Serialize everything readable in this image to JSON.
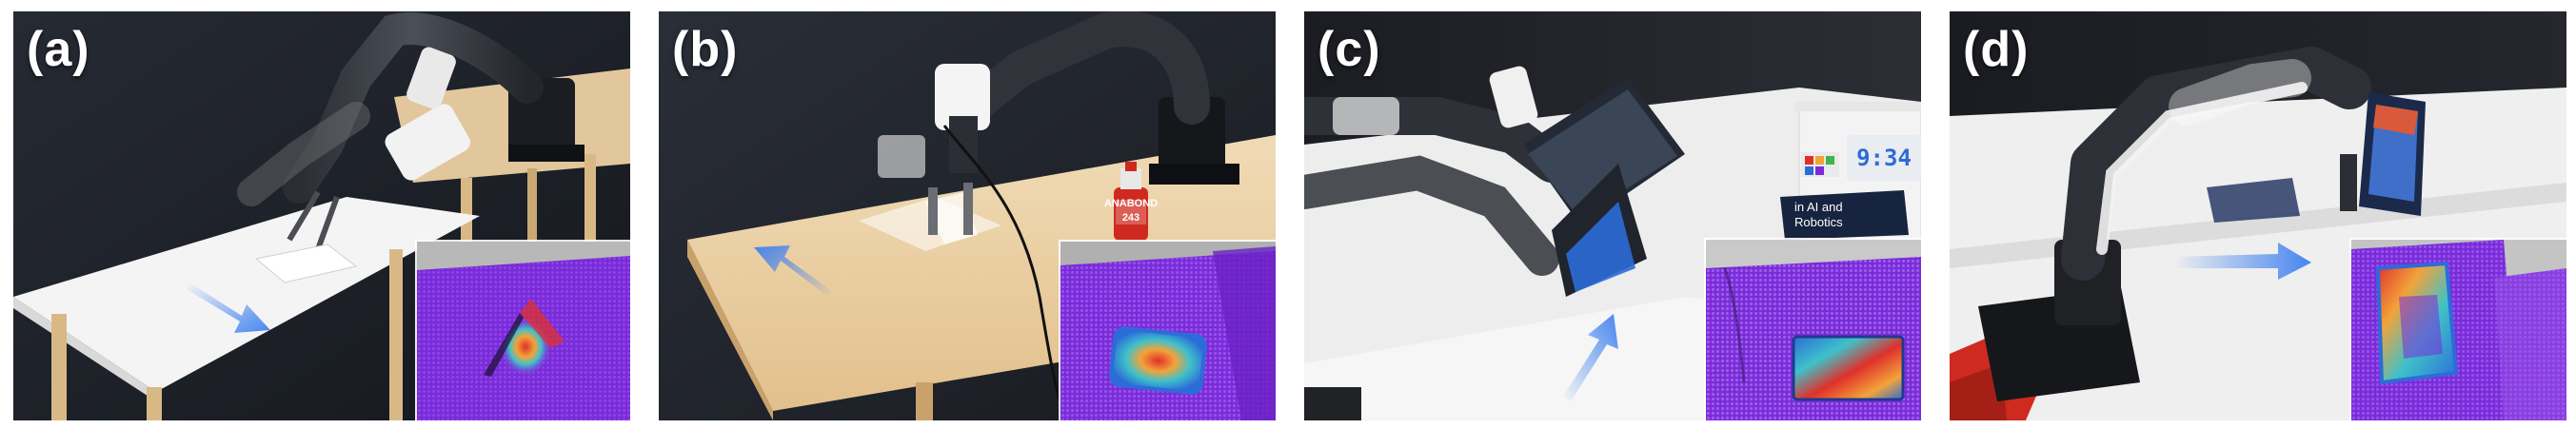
{
  "panels": [
    {
      "label": "(a)",
      "arrow_direction": "down-right"
    },
    {
      "label": "(b)",
      "arrow_direction": "up-left"
    },
    {
      "label": "(c)",
      "arrow_direction": "up-right"
    },
    {
      "label": "(d)",
      "arrow_direction": "right"
    }
  ],
  "props": {
    "bottle_brand": "ANABOND",
    "bottle_number": "243",
    "book_title_line1": "in AI and",
    "book_title_line2": "Robotics",
    "clock_time": "9:34"
  },
  "colors": {
    "arrow_blue": "#3d7ff0",
    "background_dark": "#1d2028",
    "table_white": "#f4f4f4",
    "table_wood": "#e9cfa5",
    "heatmap_purple": "#7a2bd9",
    "heatmap_hot": "#e0302a",
    "keyboard_blue": "#2c6cd8",
    "bottle_red": "#cf2a1f"
  }
}
